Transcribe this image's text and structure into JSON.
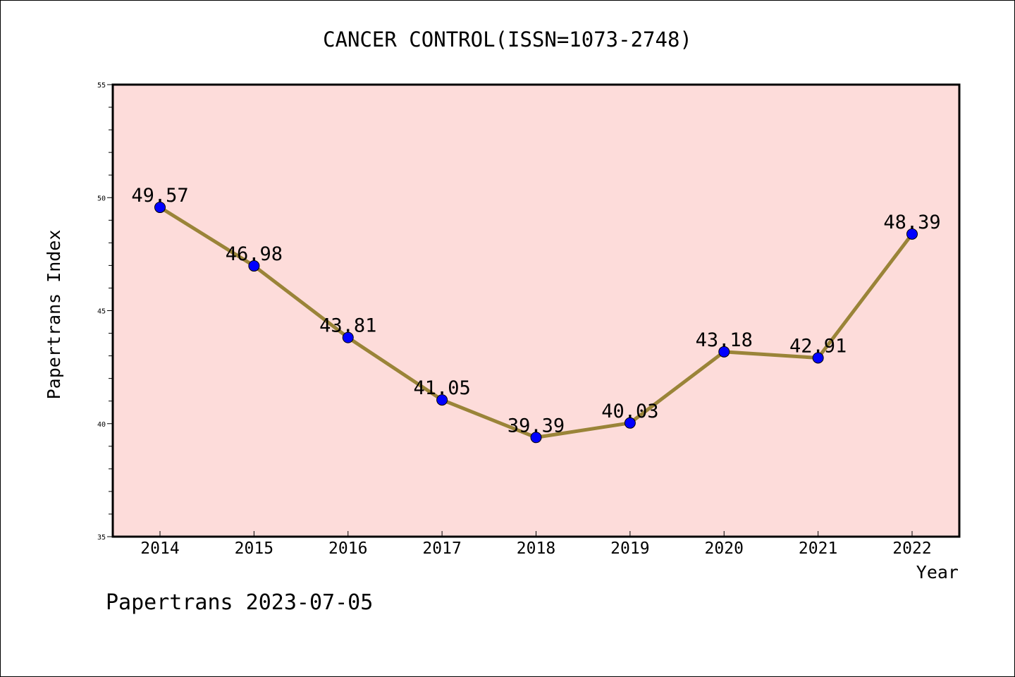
{
  "chart_data": {
    "type": "line",
    "title": "CANCER CONTROL(ISSN=1073-2748)",
    "xlabel": "Year",
    "ylabel": "Papertrans Index",
    "categories": [
      "2014",
      "2015",
      "2016",
      "2017",
      "2018",
      "2019",
      "2020",
      "2021",
      "2022"
    ],
    "series": [
      {
        "values": [
          49.57,
          46.98,
          43.81,
          41.05,
          39.39,
          40.03,
          43.18,
          42.91,
          48.39
        ]
      }
    ],
    "data_labels": [
      "49.57",
      "46.98",
      "43.81",
      "41.05",
      "39.39",
      "40.03",
      "43.18",
      "42.91",
      "48.39"
    ],
    "ylim": [
      35,
      55
    ],
    "yticks": [
      35,
      40,
      45,
      50,
      55
    ],
    "ytick_labels": [
      "35",
      "40",
      "45",
      "50",
      "55"
    ],
    "grid": false,
    "line_color": "#9a8438",
    "marker_color": "#0000ff",
    "plot_background": "#fddcda"
  },
  "footer": {
    "credit": "Papertrans 2023-07-05"
  }
}
